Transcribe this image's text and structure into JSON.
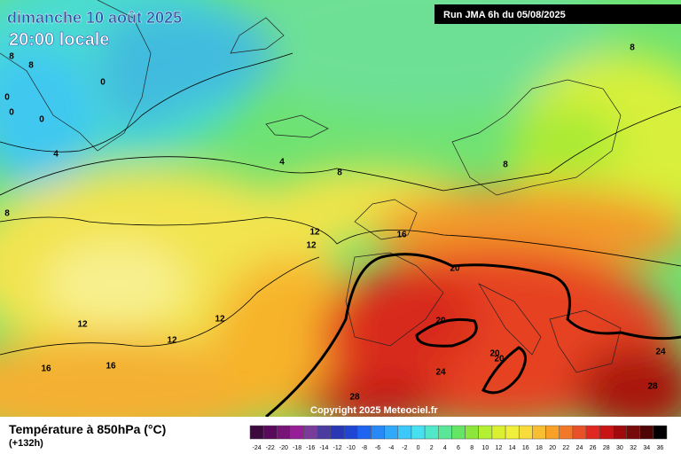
{
  "header": {
    "date": "dimanche 10 août 2025",
    "time": "20:00 locale",
    "run": "Run JMA 6h du 05/08/2025"
  },
  "copyright": "Copyright 2025 Meteociel.fr",
  "legend": {
    "title": "Température à 850hPa (°C)",
    "subtitle": "(+132h)",
    "scale": [
      {
        "value": -24,
        "color": "#3c0a3c"
      },
      {
        "value": -22,
        "color": "#5a0a5a"
      },
      {
        "value": -20,
        "color": "#781478"
      },
      {
        "value": -18,
        "color": "#961e96"
      },
      {
        "value": -16,
        "color": "#7a3c9a"
      },
      {
        "value": -14,
        "color": "#4b3ca0"
      },
      {
        "value": -12,
        "color": "#2838b4"
      },
      {
        "value": -10,
        "color": "#1e46d2"
      },
      {
        "value": -8,
        "color": "#1e64f0"
      },
      {
        "value": -6,
        "color": "#2888f8"
      },
      {
        "value": -4,
        "color": "#32a8f8"
      },
      {
        "value": -2,
        "color": "#3cc8f8"
      },
      {
        "value": 0,
        "color": "#46e0f0"
      },
      {
        "value": 2,
        "color": "#50e8c8"
      },
      {
        "value": 4,
        "color": "#5ae696"
      },
      {
        "value": 6,
        "color": "#64e664"
      },
      {
        "value": 8,
        "color": "#8ce63c"
      },
      {
        "value": 10,
        "color": "#b4f032"
      },
      {
        "value": 12,
        "color": "#dcf032"
      },
      {
        "value": 14,
        "color": "#f0f03c"
      },
      {
        "value": 16,
        "color": "#f8dc3c"
      },
      {
        "value": 18,
        "color": "#f8be32"
      },
      {
        "value": 20,
        "color": "#f8a028"
      },
      {
        "value": 22,
        "color": "#f07828"
      },
      {
        "value": 24,
        "color": "#e85028"
      },
      {
        "value": 26,
        "color": "#e02820"
      },
      {
        "value": 28,
        "color": "#c81414"
      },
      {
        "value": 30,
        "color": "#a00a0a"
      },
      {
        "value": 32,
        "color": "#780a0a"
      },
      {
        "value": 34,
        "color": "#500505"
      },
      {
        "value": 36,
        "color": "#000000"
      }
    ]
  },
  "contour_labels": [
    8,
    8,
    0,
    0,
    0,
    0,
    4,
    4,
    8,
    8,
    8,
    8,
    12,
    12,
    16,
    20,
    20,
    12,
    12,
    12,
    20,
    20,
    16,
    16,
    24,
    24,
    28,
    28
  ]
}
